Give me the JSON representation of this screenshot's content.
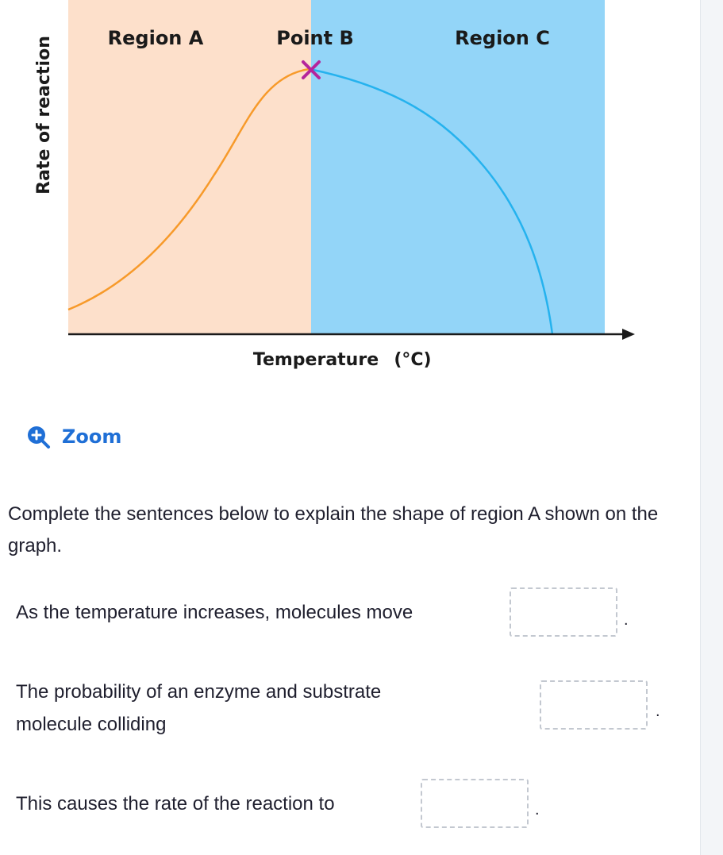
{
  "graph": {
    "region_a_label": "Region A",
    "point_b_label": "Point B",
    "region_c_label": "Region C",
    "y_axis_label": "Rate of reaction",
    "x_axis_label": "Temperature",
    "x_axis_unit": "(°C)",
    "colors": {
      "region_a_fill": "#fde0cb",
      "region_c_fill": "#93d5f8",
      "rising_curve": "#f79a2a",
      "falling_curve": "#25b2ee",
      "peak_marker": "#b5259c",
      "axis": "#1a1a1a"
    }
  },
  "zoom": {
    "label": "Zoom",
    "icon": "zoom-in-icon"
  },
  "question": "Complete the sentences below to explain the shape of region A shown on the graph.",
  "sentences": {
    "s1": "As the temperature increases, molecules move",
    "s2_line1": "The probability of an enzyme and substrate",
    "s2_line2": "molecule colliding",
    "s3": "This causes the rate of the reaction to",
    "end_mark": "."
  }
}
